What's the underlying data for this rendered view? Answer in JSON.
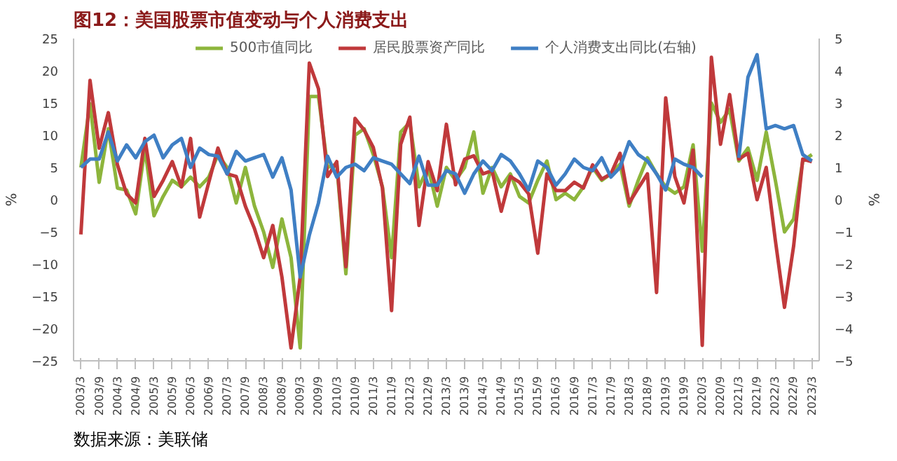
{
  "chart_data": {
    "type": "line",
    "title": "图12：美国股票市值变动与个人消费支出",
    "ylabel": "%",
    "y2label": "%",
    "categories": [
      "2003/3",
      null,
      "2003/9",
      null,
      "2004/3",
      null,
      "2004/9",
      null,
      "2005/3",
      null,
      "2005/9",
      null,
      "2006/3",
      null,
      "2006/9",
      null,
      "2007/3",
      null,
      "2007/9",
      null,
      "2008/3",
      null,
      "2008/9",
      null,
      "2009/3",
      null,
      "2009/9",
      null,
      "2010/3",
      null,
      "2010/9",
      null,
      "2011/3",
      null,
      "2011/9",
      null,
      "2012/3",
      null,
      "2012/9",
      null,
      "2013/3",
      null,
      "2013/9",
      null,
      "2014/3",
      null,
      "2014/9",
      null,
      "2015/3",
      null,
      "2015/9",
      null,
      "2016/3",
      null,
      "2016/9",
      null,
      "2017/3",
      null,
      "2017/9",
      null,
      "2018/3",
      null,
      "2018/9",
      null,
      "2019/3",
      null,
      "2019/9",
      null,
      "2020/3",
      null,
      "2020/9",
      null,
      "2021/3",
      null,
      "2021/9",
      null,
      "2022/3",
      null,
      "2022/9",
      null,
      "2023/3"
    ],
    "series": [
      {
        "name": "500市值同比",
        "color": "#8db53c",
        "values": [
          5,
          14.9,
          2.7,
          11,
          1.8,
          1.5,
          -2.2,
          8,
          -2.5,
          0.5,
          3,
          2,
          3.5,
          2,
          3.5,
          7,
          5,
          -0.5,
          5,
          -1,
          -5,
          -10.5,
          -3,
          -9,
          -23,
          16,
          16,
          5,
          5.5,
          -11.5,
          10,
          11,
          7,
          2,
          -9,
          10.5,
          12,
          2,
          5,
          -1,
          5,
          3,
          5,
          10.5,
          1,
          5,
          2,
          4,
          0.5,
          -0.5,
          3,
          6,
          0,
          1,
          0,
          2,
          5,
          3,
          4,
          5.5,
          -1,
          3,
          6.5,
          4,
          2,
          1,
          2,
          8.5,
          -8,
          15,
          12,
          14,
          6,
          8,
          3,
          10.5,
          3,
          -5,
          -3,
          6,
          7
        ]
      },
      {
        "name": "居民股票资产同比",
        "color": "#c0393b",
        "values": [
          -5.4,
          18.5,
          8,
          13.5,
          5.4,
          0.9,
          -0.5,
          9.5,
          0.5,
          3,
          5.9,
          2,
          9.5,
          -2.7,
          2.7,
          8,
          4,
          3.6,
          -1,
          -4.5,
          -9,
          -4,
          -12,
          -23,
          -12,
          21.2,
          17.2,
          3.6,
          5.9,
          -10.4,
          12.6,
          10.8,
          8.1,
          1.8,
          -17.2,
          8.6,
          12.8,
          -4,
          5.9,
          1.4,
          11.7,
          2.3,
          6.3,
          6.8,
          4,
          4.5,
          -1.8,
          3.6,
          2.7,
          0.9,
          -8.3,
          4,
          1.4,
          1.4,
          2.7,
          1.8,
          5.4,
          3.2,
          4,
          7.2,
          -0.5,
          1.8,
          4,
          -14.4,
          15.8,
          3.6,
          -0.5,
          7.7,
          -22.6,
          22.1,
          8.6,
          16.3,
          6.3,
          7.2,
          0,
          5,
          -6.3,
          -16.7,
          -7.2,
          6.3,
          5.9
        ]
      },
      {
        "name": "个人消费支出同比(右轴)",
        "color": "#3f7fc4",
        "axis": "y2",
        "values": [
          1.0,
          1.26,
          1.26,
          2.1,
          1.2,
          1.7,
          1.3,
          1.8,
          2.0,
          1.3,
          1.7,
          1.9,
          1.0,
          1.6,
          1.4,
          1.35,
          0.8,
          1.5,
          1.2,
          1.3,
          1.4,
          0.7,
          1.3,
          0.3,
          -2.4,
          -1.1,
          -0.1,
          1.35,
          0.7,
          1.0,
          1.1,
          0.9,
          1.3,
          1.2,
          1.1,
          0.8,
          0.5,
          1.35,
          0.45,
          0.45,
          0.9,
          0.8,
          0.2,
          0.8,
          1.2,
          0.9,
          1.4,
          1.2,
          0.8,
          0.3,
          1.2,
          1.0,
          0.45,
          0.8,
          1.26,
          1.0,
          0.9,
          1.3,
          0.7,
          1.0,
          1.8,
          1.4,
          1.2,
          0.8,
          0.3,
          1.26,
          1.1,
          1.0,
          0.7,
          null,
          null,
          null,
          1.3,
          3.8,
          4.5,
          2.2,
          2.3,
          2.2,
          2.3,
          1.4,
          1.2
        ]
      }
    ],
    "ylim": [
      -25,
      25
    ],
    "yticks": [
      -25,
      -20,
      -15,
      -10,
      -5,
      0,
      5,
      10,
      15,
      20,
      25
    ],
    "y2lim": [
      -5,
      5
    ],
    "y2ticks": [
      -5,
      -4,
      -3,
      -2,
      -1,
      0,
      1,
      2,
      3,
      4,
      5
    ],
    "grid": false,
    "legend": "top",
    "marker": "none",
    "line_style": "solid",
    "annotations": [
      "数据来源：美联储"
    ]
  }
}
